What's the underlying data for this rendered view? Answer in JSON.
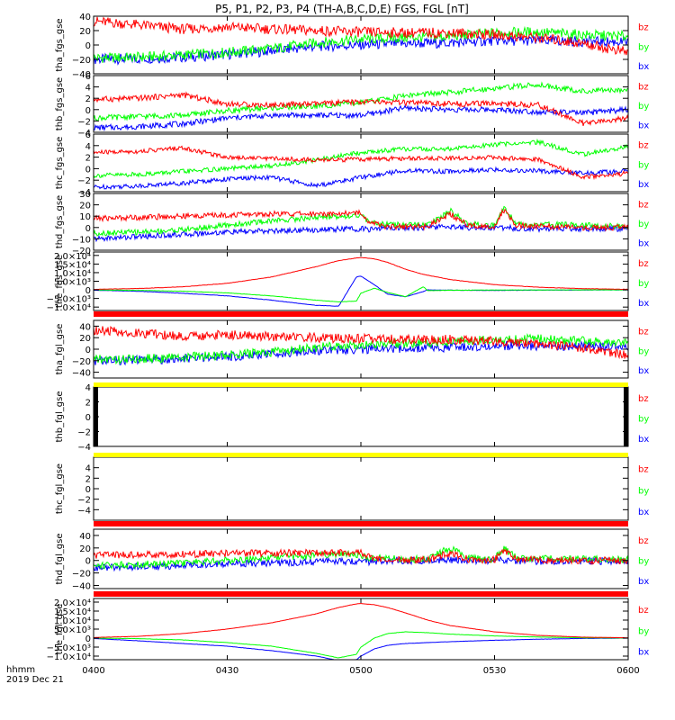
{
  "title": "P5, P1, P2, P3, P4 (TH-A,B,C,D,E) FGS, FGL [nT]",
  "x_axis": {
    "time_label": "hhmm",
    "date_label": "2019 Dec 21",
    "ticks": [
      "0400",
      "0430",
      "0500",
      "0530",
      "0600"
    ],
    "range_minutes": [
      0,
      120
    ]
  },
  "colors": {
    "bx": "#0000ff",
    "by": "#00ff00",
    "bz": "#ff0000",
    "bar_red": "#ff0000",
    "bar_yellow": "#ffff00"
  },
  "legend_labels": [
    "bz",
    "by",
    "bx"
  ],
  "chart_data": [
    {
      "type": "line",
      "panel": "tha_fgs_gse",
      "ylabel": "tha_fgs_gse",
      "ylim": [
        -40,
        40
      ],
      "yticks": [
        "40",
        "20",
        "0",
        "−20",
        "−40"
      ],
      "x": [
        0,
        10,
        20,
        30,
        40,
        50,
        60,
        70,
        80,
        90,
        100,
        110,
        120
      ],
      "series": [
        {
          "name": "bz",
          "values": [
            33,
            28,
            22,
            25,
            22,
            20,
            18,
            17,
            17,
            14,
            10,
            2,
            -10
          ]
        },
        {
          "name": "by",
          "values": [
            -18,
            -17,
            -14,
            -10,
            -5,
            3,
            8,
            10,
            12,
            17,
            18,
            14,
            12
          ]
        },
        {
          "name": "bx",
          "values": [
            -20,
            -19,
            -17,
            -13,
            -8,
            -2,
            0,
            2,
            3,
            6,
            6,
            5,
            4
          ]
        }
      ]
    },
    {
      "type": "line",
      "panel": "thb_fgs_gse",
      "ylabel": "thb_fgs_gse",
      "ylim": [
        -4,
        6
      ],
      "yticks": [
        "6",
        "4",
        "2",
        "0",
        "−2",
        "−4"
      ],
      "x": [
        0,
        10,
        20,
        30,
        40,
        50,
        60,
        70,
        80,
        90,
        100,
        110,
        120
      ],
      "series": [
        {
          "name": "bz",
          "values": [
            1.8,
            2.0,
            2.6,
            1.0,
            0.8,
            1.0,
            1.4,
            1.2,
            1.0,
            1.1,
            0.8,
            -2.5,
            -1.5
          ]
        },
        {
          "name": "by",
          "values": [
            -1.5,
            -1.2,
            -1.0,
            -0.2,
            0.3,
            0.6,
            1.2,
            2.5,
            3.0,
            3.8,
            4.4,
            3.2,
            3.6
          ]
        },
        {
          "name": "bx",
          "values": [
            -3.2,
            -3.0,
            -2.5,
            -1.5,
            -1.0,
            -1.0,
            -1.0,
            0.3,
            0.0,
            0.0,
            -0.4,
            -0.6,
            0.0
          ]
        }
      ]
    },
    {
      "type": "line",
      "panel": "thc_fgs_gse",
      "ylabel": "thc_fgs_gse",
      "ylim": [
        -4,
        6
      ],
      "yticks": [
        "6",
        "4",
        "2",
        "0",
        "−2",
        "−4"
      ],
      "x": [
        0,
        10,
        20,
        30,
        40,
        50,
        60,
        70,
        80,
        90,
        100,
        110,
        120
      ],
      "series": [
        {
          "name": "bz",
          "values": [
            2.8,
            3.0,
            3.6,
            2.0,
            1.8,
            1.5,
            1.6,
            1.8,
            1.8,
            1.9,
            1.6,
            -1.5,
            -0.8
          ]
        },
        {
          "name": "by",
          "values": [
            -1.2,
            -1.0,
            -0.5,
            0.0,
            0.5,
            1.5,
            2.8,
            3.4,
            3.4,
            4.2,
            4.6,
            2.5,
            3.8
          ]
        },
        {
          "name": "bx",
          "values": [
            -3.2,
            -3.0,
            -2.5,
            -1.8,
            -1.5,
            -3.0,
            -1.5,
            -0.3,
            -0.5,
            -0.2,
            -0.4,
            -0.8,
            -0.4
          ]
        }
      ]
    },
    {
      "type": "line",
      "panel": "thd_fgs_gse",
      "ylabel": "thd_fgs_gse",
      "ylim": [
        -20,
        30
      ],
      "yticks": [
        "30",
        "20",
        "10",
        "0",
        "−10",
        "−20"
      ],
      "x": [
        0,
        10,
        20,
        30,
        40,
        50,
        60,
        62,
        65,
        70,
        75,
        80,
        84,
        90,
        92,
        95,
        100,
        110,
        120
      ],
      "series": [
        {
          "name": "bz",
          "values": [
            8,
            9,
            10,
            11,
            12,
            12,
            13,
            5,
            1,
            1,
            1,
            12,
            2,
            1,
            15,
            2,
            1,
            0,
            0
          ]
        },
        {
          "name": "by",
          "values": [
            -5,
            -4,
            -2,
            2,
            6,
            9,
            11,
            4,
            3,
            2,
            2,
            15,
            3,
            2,
            18,
            3,
            3,
            2,
            1
          ]
        },
        {
          "name": "bx",
          "values": [
            -10,
            -8,
            -6,
            -4,
            -3,
            -2,
            -1,
            -2,
            0,
            0,
            0,
            1,
            0,
            0,
            0,
            -1,
            -1,
            -1,
            -1
          ]
        }
      ]
    },
    {
      "type": "line",
      "panel": "the_fgs_gse",
      "ylabel": "the_fgs_gse",
      "ylim": [
        -12000,
        22000
      ],
      "yticks": [
        "2.0×10⁴",
        "1.5×10⁴",
        "1.0×10⁴",
        "5.0×10³",
        "0",
        "−5.0×10³",
        "−1.0×10⁴"
      ],
      "x": [
        0,
        10,
        20,
        30,
        40,
        50,
        55,
        59,
        60,
        63,
        66,
        70,
        74,
        75,
        80,
        90,
        100,
        110,
        120
      ],
      "series": [
        {
          "name": "bz",
          "values": [
            300,
            800,
            1800,
            3800,
            7500,
            13500,
            17000,
            18500,
            18800,
            18000,
            16000,
            12000,
            9000,
            8500,
            6000,
            3000,
            1500,
            700,
            300
          ]
        },
        {
          "name": "by",
          "values": [
            0,
            -300,
            -800,
            -1800,
            -3500,
            -6000,
            -7000,
            -6500,
            -2000,
            1000,
            -1500,
            -4000,
            1800,
            -500,
            -200,
            -100,
            -50,
            0,
            0
          ]
        },
        {
          "name": "bx",
          "values": [
            -200,
            -800,
            -2000,
            -3500,
            -6000,
            -9000,
            -9500,
            7500,
            8000,
            3000,
            -2500,
            -4000,
            -1000,
            0,
            -200,
            -300,
            -200,
            -100,
            0
          ]
        }
      ]
    },
    {
      "type": "line",
      "panel": "tha_fgl_gse",
      "ylabel": "tha_fgl_gse",
      "ylim": [
        -50,
        50
      ],
      "yticks": [
        "40",
        "20",
        "0",
        "−20",
        "−40"
      ],
      "x": [
        0,
        10,
        20,
        30,
        40,
        50,
        60,
        70,
        80,
        90,
        100,
        110,
        120
      ],
      "series": [
        {
          "name": "bz",
          "values": [
            33,
            28,
            22,
            25,
            22,
            20,
            18,
            17,
            17,
            14,
            10,
            2,
            -10
          ]
        },
        {
          "name": "by",
          "values": [
            -18,
            -17,
            -14,
            -10,
            -5,
            3,
            8,
            10,
            12,
            17,
            18,
            14,
            12
          ]
        },
        {
          "name": "bx",
          "values": [
            -20,
            -19,
            -17,
            -13,
            -8,
            -2,
            0,
            2,
            3,
            6,
            6,
            5,
            4
          ]
        }
      ]
    },
    {
      "type": "line",
      "panel": "thb_fgl_gse",
      "ylabel": "thb_fgl_gse",
      "ylim": [
        -4,
        4
      ],
      "yticks": [
        "4",
        "2",
        "0",
        "−2",
        "−4"
      ],
      "series": []
    },
    {
      "type": "line",
      "panel": "thc_fgl_gse",
      "ylabel": "thc_fgl_gse",
      "ylim": [
        -6,
        6
      ],
      "yticks": [
        "4",
        "2",
        "0",
        "−2",
        "−4"
      ],
      "series": []
    },
    {
      "type": "line",
      "panel": "thd_fgl_gse",
      "ylabel": "thd_fgl_gse",
      "ylim": [
        -45,
        50
      ],
      "yticks": [
        "40",
        "20",
        "0",
        "−20",
        "−40"
      ],
      "x": [
        0,
        10,
        20,
        30,
        40,
        50,
        60,
        62,
        65,
        70,
        75,
        80,
        84,
        90,
        92,
        95,
        100,
        110,
        120
      ],
      "series": [
        {
          "name": "bz",
          "values": [
            8,
            9,
            10,
            11,
            12,
            12,
            13,
            5,
            1,
            1,
            1,
            12,
            2,
            1,
            15,
            2,
            1,
            0,
            0
          ]
        },
        {
          "name": "by",
          "values": [
            -8,
            -6,
            -4,
            0,
            5,
            8,
            10,
            4,
            3,
            2,
            2,
            20,
            3,
            2,
            20,
            3,
            3,
            2,
            1
          ]
        },
        {
          "name": "bx",
          "values": [
            -12,
            -10,
            -8,
            -5,
            -4,
            -2,
            -1,
            -2,
            0,
            0,
            0,
            1,
            0,
            0,
            0,
            -1,
            -1,
            -1,
            -1
          ]
        }
      ]
    },
    {
      "type": "line",
      "panel": "the_fgl_gse",
      "ylabel": "the_fgl_gse",
      "ylim": [
        -12000,
        22000
      ],
      "yticks": [
        "2.0×10⁴",
        "1.5×10⁴",
        "1.0×10⁴",
        "5.0×10³",
        "0",
        "−5.0×10³",
        "−1.0×10⁴"
      ],
      "x": [
        0,
        10,
        20,
        30,
        40,
        50,
        55,
        59,
        60,
        63,
        66,
        70,
        75,
        80,
        90,
        100,
        110,
        120
      ],
      "series": [
        {
          "name": "bz",
          "values": [
            300,
            1000,
            2500,
            5000,
            8500,
            13500,
            17000,
            19000,
            19200,
            18500,
            17000,
            14000,
            10000,
            7000,
            3500,
            1500,
            500,
            200
          ]
        },
        {
          "name": "by",
          "values": [
            0,
            -300,
            -1000,
            -2500,
            -4500,
            -8500,
            -11000,
            -9000,
            -5000,
            0,
            2500,
            3500,
            3000,
            2200,
            1200,
            600,
            200,
            0
          ]
        },
        {
          "name": "bx",
          "values": [
            -200,
            -1500,
            -3000,
            -4500,
            -7000,
            -10000,
            -12500,
            -12000,
            -10000,
            -6000,
            -4000,
            -3000,
            -2500,
            -2000,
            -1200,
            -600,
            -200,
            0
          ]
        }
      ]
    }
  ]
}
